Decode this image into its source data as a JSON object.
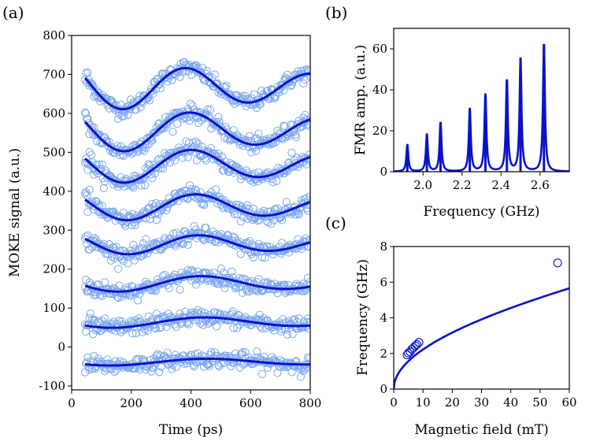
{
  "chart_data": [
    {
      "panel": "(a)",
      "type": "scatter",
      "xlabel": "Time (ps)",
      "ylabel": "MOKE signal (a.u.)",
      "xlim": [
        0,
        800
      ],
      "ylim": [
        -110,
        800
      ],
      "xticks": [
        0,
        200,
        400,
        600,
        800
      ],
      "yticks": [
        -100,
        0,
        100,
        200,
        300,
        400,
        500,
        600,
        700,
        800
      ],
      "marker_color": "#7aa6ef",
      "fit_color": "#0a12c8",
      "time_range": [
        45,
        800
      ],
      "noise_amplitude": 10,
      "series": [
        {
          "offset": 668,
          "amplitude": 48,
          "period_ps": 420,
          "phase_peak_ps": 385,
          "decay_ps": 1200,
          "slope": 0
        },
        {
          "offset": 557,
          "amplitude": 45,
          "period_ps": 440,
          "phase_peak_ps": 400,
          "decay_ps": 1200,
          "slope": 0
        },
        {
          "offset": 468,
          "amplitude": 38,
          "period_ps": 450,
          "phase_peak_ps": 405,
          "decay_ps": 1200,
          "slope": 0
        },
        {
          "offset": 362,
          "amplitude": 30,
          "period_ps": 460,
          "phase_peak_ps": 420,
          "decay_ps": 1200,
          "slope": 0
        },
        {
          "offset": 265,
          "amplitude": 22,
          "period_ps": 470,
          "phase_peak_ps": 430,
          "decay_ps": 1200,
          "slope": 0
        },
        {
          "offset": 164,
          "amplitude": 18,
          "period_ps": 560,
          "phase_peak_ps": 440,
          "decay_ps": 1500,
          "slope": 0
        },
        {
          "offset": 64,
          "amplitude": 12,
          "period_ps": 620,
          "phase_peak_ps": 450,
          "decay_ps": 1600,
          "slope": 0
        },
        {
          "offset": -38,
          "amplitude": 8,
          "period_ps": 650,
          "phase_peak_ps": 460,
          "decay_ps": 2000,
          "slope": 0
        }
      ],
      "panel_label": "(a)"
    },
    {
      "panel": "(b)",
      "type": "line",
      "xlabel": "Frequency (GHz)",
      "ylabel": "FMR amp. (a.u.)",
      "xlim": [
        1.85,
        2.75
      ],
      "ylim": [
        0,
        70
      ],
      "xticks": [
        2.0,
        2.2,
        2.4,
        2.6
      ],
      "xtick_labels": [
        "2.0",
        "2.2",
        "2.4",
        "2.6"
      ],
      "yticks": [
        0,
        20,
        40,
        60
      ],
      "line_color": "#0a12c8",
      "peak_width_ghz": 0.006,
      "peaks": [
        {
          "frequency": 1.92,
          "amplitude": 13
        },
        {
          "frequency": 2.02,
          "amplitude": 18
        },
        {
          "frequency": 2.09,
          "amplitude": 24
        },
        {
          "frequency": 2.24,
          "amplitude": 30.5
        },
        {
          "frequency": 2.32,
          "amplitude": 37.5
        },
        {
          "frequency": 2.43,
          "amplitude": 44.5
        },
        {
          "frequency": 2.5,
          "amplitude": 55
        },
        {
          "frequency": 2.62,
          "amplitude": 62
        }
      ],
      "panel_label": "(b)"
    },
    {
      "panel": "(c)",
      "type": "scatter",
      "xlabel": "Magnetic field (mT)",
      "ylabel": "Frequency (GHz)",
      "xlim": [
        0,
        60
      ],
      "ylim": [
        0,
        8
      ],
      "xticks": [
        0,
        10,
        20,
        30,
        40,
        50,
        60
      ],
      "yticks": [
        0,
        2,
        4,
        6,
        8
      ],
      "fit": {
        "model": "kittel",
        "gamma_ghz_per_mt": 0.028,
        "ms_mt": 620
      },
      "line_color": "#0a12c8",
      "points": [
        {
          "x": 4.6,
          "y": 1.92
        },
        {
          "x": 5.0,
          "y": 2.02
        },
        {
          "x": 5.6,
          "y": 2.09
        },
        {
          "x": 6.2,
          "y": 2.24
        },
        {
          "x": 6.8,
          "y": 2.32
        },
        {
          "x": 7.4,
          "y": 2.43
        },
        {
          "x": 7.9,
          "y": 2.5
        },
        {
          "x": 8.6,
          "y": 2.62
        },
        {
          "x": 56.0,
          "y": 7.08
        }
      ],
      "panel_label": "(c)"
    }
  ]
}
